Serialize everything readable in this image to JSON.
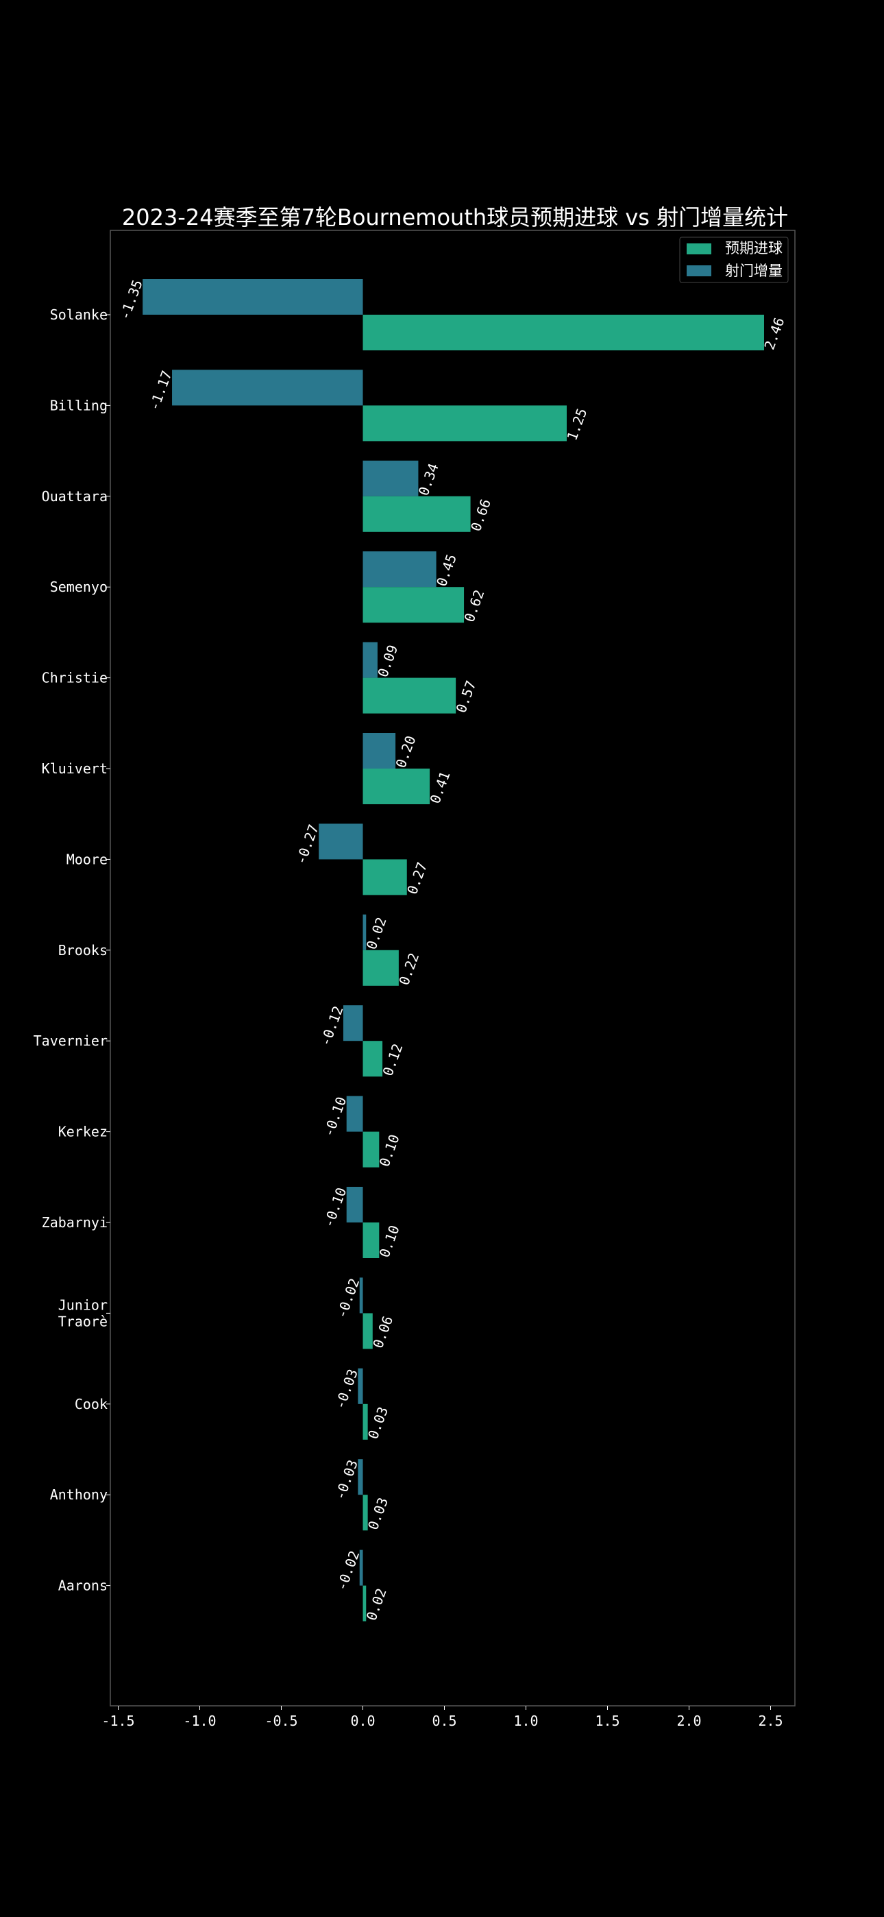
{
  "colors": {
    "background": "#000000",
    "text": "#ffffff",
    "axes_edge": "#555555",
    "xg_color": "#22a884",
    "shot_delta_color": "#2a788e"
  },
  "chart_data": {
    "type": "bar",
    "orientation": "horizontal",
    "title": "2023-24赛季至第7轮Bournemouth球员预期进球 vs 射门增量统计",
    "xlabel": "",
    "ylabel": "",
    "xlim": [
      -1.5,
      2.5
    ],
    "xticks": [
      "-1.5",
      "-1.0",
      "-0.5",
      "0.0",
      "0.5",
      "1.0",
      "1.5",
      "2.0",
      "2.5"
    ],
    "grid": false,
    "legend_position": "top-right",
    "categories": [
      "Solanke",
      "Billing",
      "Ouattara",
      "Semenyo",
      "Christie",
      "Kluivert",
      "Moore",
      "Brooks",
      "Tavernier",
      "Kerkez",
      "Zabarnyi",
      "Junior Traorè",
      "Cook",
      "Anthony",
      "Aarons"
    ],
    "series": [
      {
        "name": "预期进球",
        "values": [
          2.46,
          1.25,
          0.66,
          0.62,
          0.57,
          0.41,
          0.27,
          0.22,
          0.12,
          0.1,
          0.1,
          0.06,
          0.03,
          0.03,
          0.02
        ],
        "labels": [
          "2.46",
          "1.25",
          "0.66",
          "0.62",
          "0.57",
          "0.41",
          "0.27",
          "0.22",
          "0.12",
          "0.10",
          "0.10",
          "0.06",
          "0.03",
          "0.03",
          "0.02"
        ]
      },
      {
        "name": "射门增量",
        "values": [
          -1.35,
          -1.17,
          0.34,
          0.45,
          0.09,
          0.2,
          -0.27,
          0.02,
          -0.12,
          -0.1,
          -0.1,
          -0.02,
          -0.03,
          -0.03,
          -0.02
        ],
        "labels": [
          "-1.35",
          "-1.17",
          "0.34",
          "0.45",
          "0.09",
          "0.20",
          "-0.27",
          "0.02",
          "-0.12",
          "-0.10",
          "-0.10",
          "-0.02",
          "-0.03",
          "-0.03",
          "-0.02"
        ]
      }
    ]
  }
}
